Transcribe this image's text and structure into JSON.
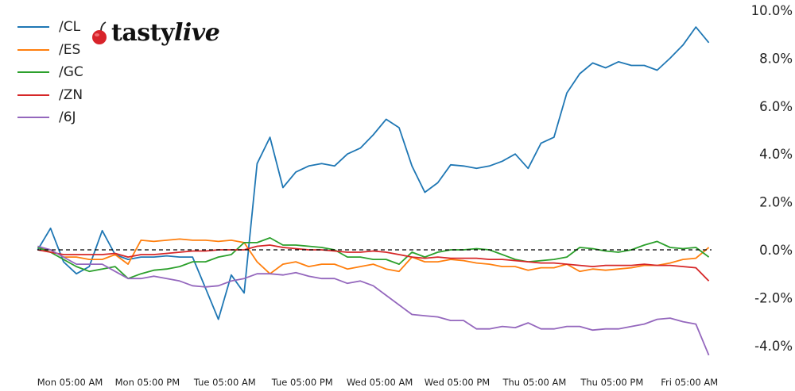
{
  "logo": {
    "brand": "tastylive",
    "brand_plain": "tasty",
    "brand_italic": "live"
  },
  "chart_data": {
    "type": "line",
    "title": "",
    "xlabel": "",
    "ylabel": "",
    "ylim": [
      -4.6,
      10.0
    ],
    "y_axis_side": "right",
    "y_ticks": [
      10,
      8,
      6,
      4,
      2,
      0,
      -2,
      -4
    ],
    "y_tick_labels": [
      "10.0%",
      "8.0%",
      "6.0%",
      "4.0%",
      "2.0%",
      "0.0%",
      "-2.0%",
      "-4.0%"
    ],
    "x_ticks": [
      "Mon 05:00",
      "Mon 17:00",
      "Tue 05:00",
      "Tue 17:00",
      "Wed 05:00",
      "Wed 17:00",
      "Thu 05:00",
      "Thu 17:00",
      "Fri 05:00"
    ],
    "x_tick_labels": [
      "Mon 05:00 AM",
      "Mon 05:00 PM",
      "Tue 05:00 AM",
      "Tue 05:00 PM",
      "Wed 05:00 AM",
      "Wed 05:00 PM",
      "Thu 05:00 AM",
      "Thu 05:00 PM",
      "Fri 05:00 AM"
    ],
    "reference_line": {
      "y": 0,
      "style": "dashed",
      "color": "#000000"
    },
    "grid": false,
    "legend_position": "top-left",
    "x": [
      "Mon 00:00",
      "Mon 02:00",
      "Mon 04:00",
      "Mon 06:00",
      "Mon 08:00",
      "Mon 10:00",
      "Mon 12:00",
      "Mon 14:00",
      "Mon 16:00",
      "Mon 18:00",
      "Mon 20:00",
      "Mon 22:00",
      "Tue 00:00",
      "Tue 02:00",
      "Tue 04:00",
      "Tue 06:00",
      "Tue 08:00",
      "Tue 10:00",
      "Tue 12:00",
      "Tue 14:00",
      "Tue 16:00",
      "Tue 18:00",
      "Tue 20:00",
      "Tue 22:00",
      "Wed 00:00",
      "Wed 02:00",
      "Wed 04:00",
      "Wed 06:00",
      "Wed 08:00",
      "Wed 10:00",
      "Wed 12:00",
      "Wed 14:00",
      "Wed 16:00",
      "Wed 18:00",
      "Wed 20:00",
      "Wed 22:00",
      "Thu 00:00",
      "Thu 02:00",
      "Thu 04:00",
      "Thu 06:00",
      "Thu 08:00",
      "Thu 10:00",
      "Thu 12:00",
      "Thu 14:00",
      "Thu 16:00",
      "Thu 18:00",
      "Thu 20:00",
      "Thu 22:00",
      "Fri 00:00",
      "Fri 02:00",
      "Fri 04:00",
      "Fri 06:00",
      "Fri 08:00"
    ],
    "series": [
      {
        "name": "/CL",
        "color": "#1f77b4",
        "values": [
          0,
          0.9,
          -0.5,
          -1.0,
          -0.7,
          0.8,
          -0.2,
          -0.4,
          -0.3,
          -0.3,
          -0.25,
          -0.3,
          -0.3,
          -1.6,
          -2.9,
          -1.05,
          -1.8,
          3.6,
          4.7,
          2.6,
          3.25,
          3.5,
          3.6,
          3.5,
          4.0,
          4.25,
          4.8,
          5.45,
          5.1,
          3.5,
          2.4,
          2.8,
          3.55,
          3.5,
          3.4,
          3.5,
          3.7,
          4.0,
          3.4,
          4.45,
          4.7,
          6.55,
          7.35,
          7.8,
          7.6,
          7.85,
          7.7,
          7.7,
          7.5,
          8.0,
          8.55,
          9.3,
          8.65
        ]
      },
      {
        "name": "/ES",
        "color": "#ff7f0e",
        "values": [
          0.1,
          0,
          -0.3,
          -0.3,
          -0.4,
          -0.4,
          -0.2,
          -0.6,
          0.4,
          0.35,
          0.4,
          0.45,
          0.4,
          0.4,
          0.35,
          0.4,
          0.3,
          -0.5,
          -1.0,
          -0.6,
          -0.5,
          -0.7,
          -0.6,
          -0.6,
          -0.8,
          -0.7,
          -0.6,
          -0.8,
          -0.9,
          -0.3,
          -0.5,
          -0.5,
          -0.4,
          -0.45,
          -0.55,
          -0.6,
          -0.7,
          -0.7,
          -0.85,
          -0.75,
          -0.75,
          -0.6,
          -0.9,
          -0.8,
          -0.85,
          -0.8,
          -0.75,
          -0.65,
          -0.65,
          -0.55,
          -0.4,
          -0.35,
          0.1
        ]
      },
      {
        "name": "/GC",
        "color": "#2ca02c",
        "values": [
          0.1,
          -0.1,
          -0.4,
          -0.7,
          -0.9,
          -0.8,
          -0.7,
          -1.2,
          -1.0,
          -0.85,
          -0.8,
          -0.7,
          -0.5,
          -0.5,
          -0.3,
          -0.2,
          0.3,
          0.3,
          0.5,
          0.2,
          0.2,
          0.15,
          0.1,
          0.0,
          -0.3,
          -0.3,
          -0.4,
          -0.4,
          -0.6,
          -0.1,
          -0.3,
          -0.1,
          0.0,
          0.0,
          0.05,
          0.0,
          -0.2,
          -0.4,
          -0.5,
          -0.45,
          -0.4,
          -0.3,
          0.1,
          0.05,
          -0.05,
          -0.1,
          0.0,
          0.2,
          0.35,
          0.1,
          0.05,
          0.1,
          -0.3
        ]
      },
      {
        "name": "/ZN",
        "color": "#d62728",
        "values": [
          0.0,
          -0.1,
          -0.2,
          -0.2,
          -0.2,
          -0.2,
          -0.15,
          -0.3,
          -0.2,
          -0.2,
          -0.15,
          -0.1,
          -0.05,
          -0.05,
          0.0,
          0.0,
          0.0,
          0.15,
          0.2,
          0.1,
          0.05,
          0.0,
          0.0,
          -0.05,
          -0.1,
          -0.1,
          -0.05,
          -0.1,
          -0.2,
          -0.3,
          -0.35,
          -0.3,
          -0.35,
          -0.35,
          -0.35,
          -0.4,
          -0.4,
          -0.45,
          -0.5,
          -0.55,
          -0.55,
          -0.6,
          -0.65,
          -0.7,
          -0.65,
          -0.65,
          -0.65,
          -0.6,
          -0.65,
          -0.65,
          -0.7,
          -0.75,
          -1.3
        ]
      },
      {
        "name": "/6J",
        "color": "#9467bd",
        "values": [
          0.15,
          0.0,
          -0.3,
          -0.6,
          -0.6,
          -0.6,
          -0.9,
          -1.2,
          -1.2,
          -1.1,
          -1.2,
          -1.3,
          -1.5,
          -1.55,
          -1.5,
          -1.3,
          -1.2,
          -1.0,
          -1.0,
          -1.05,
          -0.95,
          -1.1,
          -1.2,
          -1.2,
          -1.4,
          -1.3,
          -1.5,
          -1.9,
          -2.3,
          -2.7,
          -2.75,
          -2.8,
          -2.95,
          -2.95,
          -3.3,
          -3.3,
          -3.2,
          -3.25,
          -3.05,
          -3.3,
          -3.3,
          -3.2,
          -3.2,
          -3.35,
          -3.3,
          -3.3,
          -3.2,
          -3.1,
          -2.9,
          -2.85,
          -3.0,
          -3.1,
          -4.4
        ]
      }
    ]
  }
}
